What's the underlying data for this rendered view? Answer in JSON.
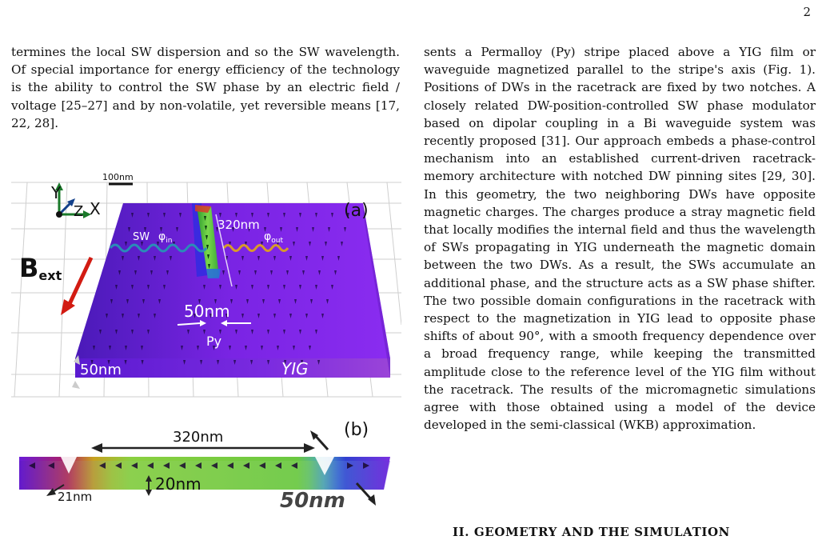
{
  "page_number": "2",
  "left_column": {
    "paragraph": "termines the local SW dispersion and so the SW wavelength. Of special importance for energy efficiency of the technology is the ability to control the SW phase by an electric field / voltage [25–27] and by non-volatile, yet reversible means [17, 22, 28]."
  },
  "right_column": {
    "paragraph": "sents a Permalloy (Py) stripe placed above a YIG film or waveguide magnetized parallel to the stripe's axis (Fig. 1). Positions of DWs in the racetrack are fixed by two notches. A closely related DW-position-controlled SW phase modulator based on dipolar coupling in a Bi waveguide system was recently proposed [31]. Our approach embeds a phase-control mechanism into an established current-driven racetrack-memory architecture with notched DW pinning sites [29, 30]. In this geometry, the two neighboring DWs have opposite magnetic charges. The charges produce a stray magnetic field that locally modifies the internal field and thus the wavelength of SWs propagating in YIG underneath the magnetic domain between the two DWs. As a result, the SWs accumulate an additional phase, and the structure acts as a SW phase shifter. The two possible domain configurations in the racetrack with respect to the magnetization in YIG lead to opposite phase shifts of about 90°, with a smooth frequency dependence over a broad frequency range, while keeping the transmitted amplitude close to the reference level of the YIG film without the racetrack. The results of the micromagnetic simulations agree with those obtained using a model of the device developed in the semi-classical (WKB) approximation."
  },
  "section_heading": "II.   GEOMETRY AND THE SIMULATION",
  "figure": {
    "panel_a": {
      "label": "(a)",
      "scale_bar": "100nm",
      "axis_y": "Y",
      "axis_z": "Z",
      "axis_x": "X",
      "field_main": "B",
      "field_sub": "ext",
      "sw_label": "SW",
      "phi_in_main": "φ",
      "phi_in_sub": "in",
      "phi_out_main": "φ",
      "phi_out_sub": "out",
      "stripe_length": "320nm",
      "stripe_width": "50nm",
      "stripe_material": "Py",
      "film_thickness": "50nm",
      "film_material": "YIG"
    },
    "panel_b": {
      "label": "(b)",
      "length": "320nm",
      "thickness": "20nm",
      "notch": "21nm",
      "width": "50nm"
    }
  },
  "colors": {
    "yig_top": "#6a1cd8",
    "yig_side": "#5a13b4",
    "py_green": "#5cc83a",
    "field_arrow": "#d21b12",
    "axis_green": "#1a7a2a",
    "axis_blue": "#12408a",
    "sw_wave_in": "#2a8cb8",
    "sw_wave_out": "#d89a2a"
  }
}
